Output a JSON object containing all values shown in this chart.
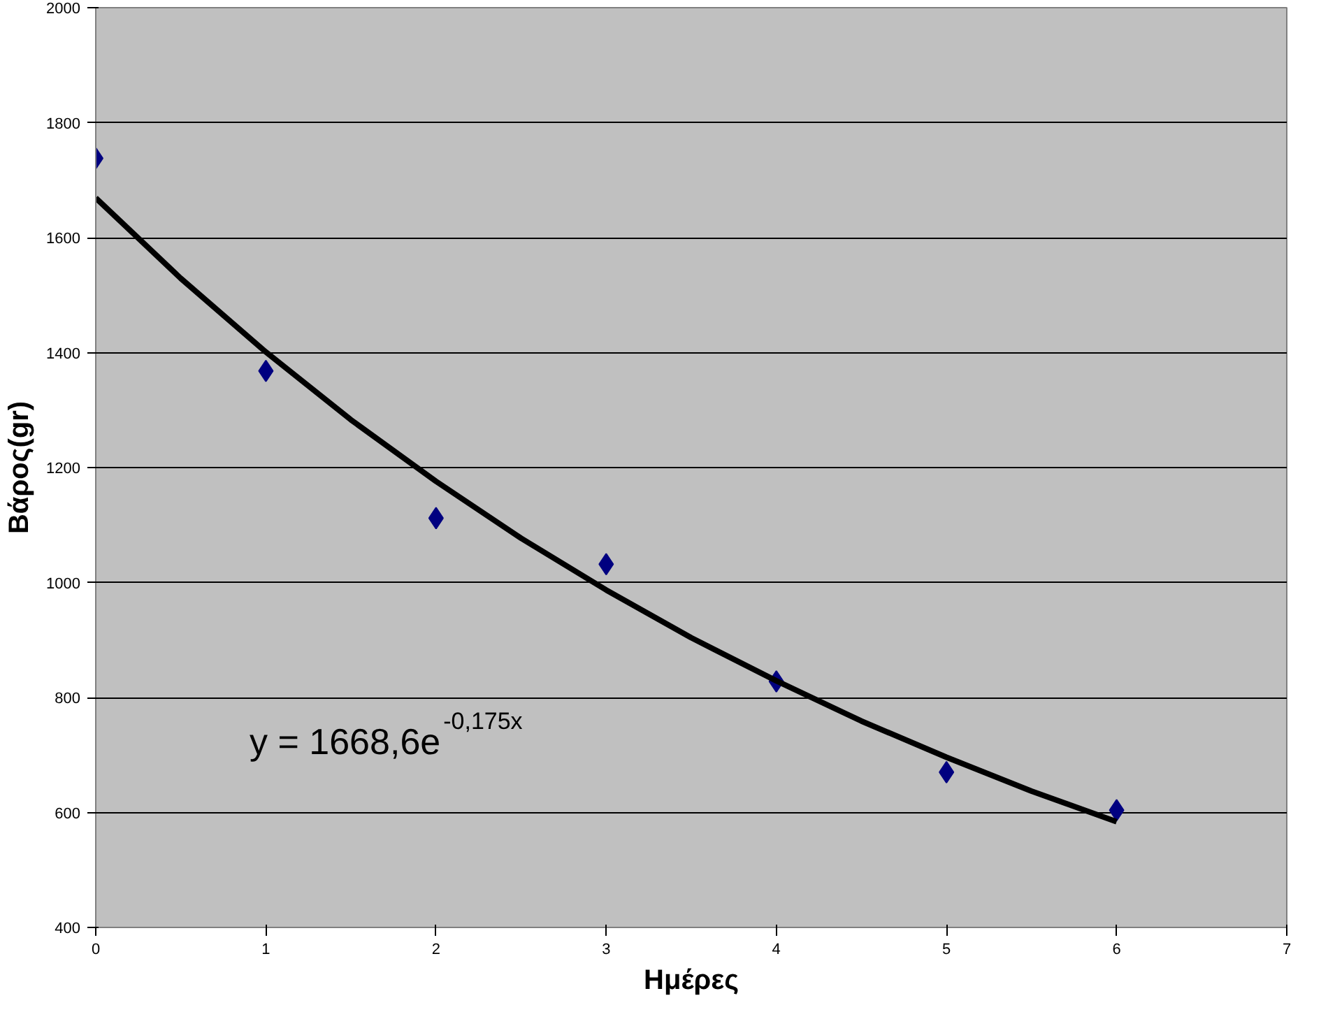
{
  "chart_data": {
    "type": "scatter",
    "xlabel": "Ημέρες",
    "ylabel": "Βάρος(gr)",
    "x": [
      0,
      1,
      2,
      3,
      4,
      5,
      6
    ],
    "series": [
      {
        "color": "#000080",
        "marker": "diamond",
        "values": [
          1738,
          1368,
          1112,
          1032,
          828,
          670,
          604
        ]
      },
      {
        "type": "line",
        "color": "#000000",
        "x": [
          0,
          0.5,
          1,
          1.5,
          2,
          2.5,
          3,
          3.5,
          4,
          4.5,
          5,
          5.5,
          6
        ],
        "values": [
          1669,
          1529,
          1401,
          1283,
          1176,
          1077,
          987,
          904,
          829,
          759,
          696,
          637,
          584
        ]
      }
    ],
    "xlim": [
      0,
      7
    ],
    "xticks": [
      0,
      1,
      2,
      3,
      4,
      5,
      6,
      7
    ],
    "ylim": [
      400,
      2000
    ],
    "yticks": [
      400,
      600,
      800,
      1000,
      1200,
      1400,
      1600,
      1800,
      2000
    ],
    "grid": "y",
    "annotations": [
      "y = 1668,6e$^{-0,175x}$"
    ]
  }
}
